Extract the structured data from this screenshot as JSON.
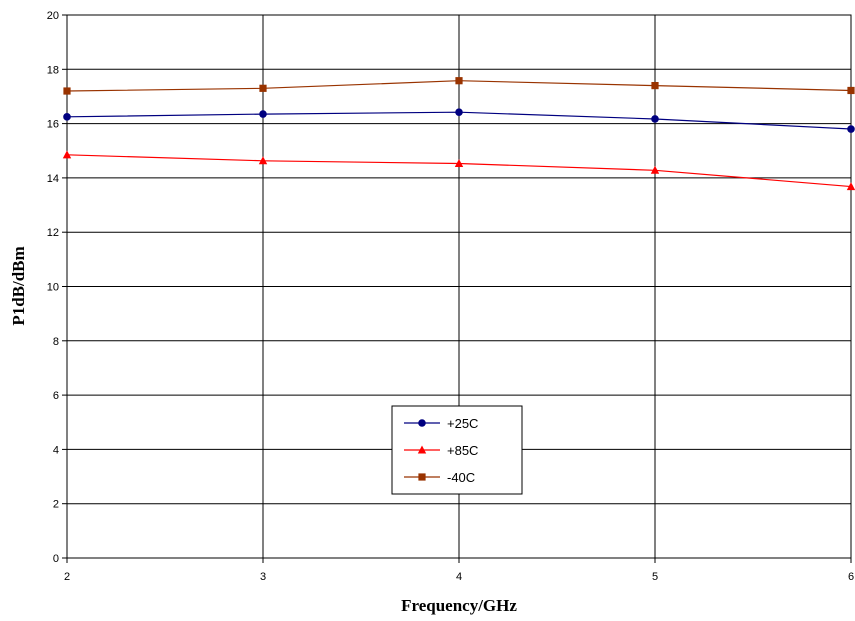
{
  "chart_data": {
    "type": "line",
    "title": "",
    "xlabel": "Frequency/GHz",
    "ylabel": "P1dB/dBm",
    "x": [
      2,
      3,
      4,
      5,
      6
    ],
    "xlim": [
      2,
      6
    ],
    "ylim": [
      0,
      20
    ],
    "yticks": [
      0,
      2,
      4,
      6,
      8,
      10,
      12,
      14,
      16,
      18,
      20
    ],
    "xticks": [
      2,
      3,
      4,
      5,
      6
    ],
    "grid": true,
    "legend_position": "bottom-center",
    "series": [
      {
        "name": "+25C",
        "values": [
          16.25,
          16.35,
          16.42,
          16.17,
          15.8
        ],
        "color": "#000080",
        "marker": "circle"
      },
      {
        "name": "+85C",
        "values": [
          14.85,
          14.63,
          14.53,
          14.28,
          13.68
        ],
        "color": "#ff0000",
        "marker": "triangle"
      },
      {
        "name": "-40C",
        "values": [
          17.2,
          17.3,
          17.58,
          17.4,
          17.22
        ],
        "color": "#993300",
        "marker": "square"
      }
    ]
  }
}
